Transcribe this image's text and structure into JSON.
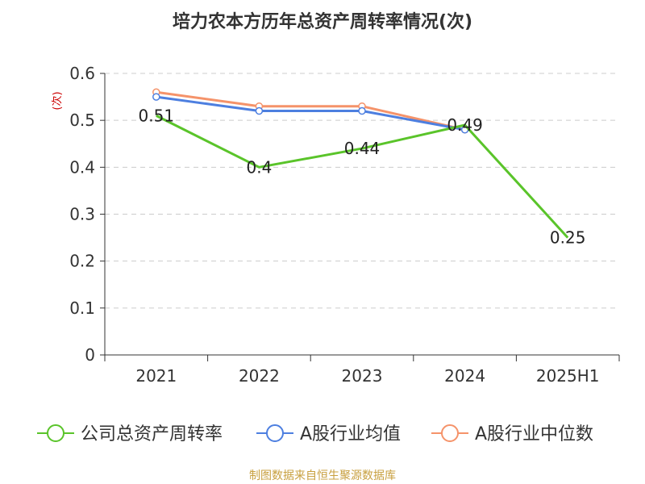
{
  "chart_data": {
    "type": "line",
    "title": "培力农本方历年总资产周转率情况(次)",
    "ylabel": "(次)",
    "xlabel": "",
    "categories": [
      "2021",
      "2022",
      "2023",
      "2024",
      "2025H1"
    ],
    "ylim": [
      0,
      0.6
    ],
    "yticks": [
      "0",
      "0.1",
      "0.2",
      "0.3",
      "0.4",
      "0.5",
      "0.6"
    ],
    "grid": true,
    "legend_position": "bottom",
    "series": [
      {
        "name": "公司总资产周转率",
        "color": "#5ac42a",
        "values": [
          0.51,
          0.4,
          0.44,
          0.49,
          0.25
        ],
        "labels": [
          "0.51",
          "0.4",
          "0.44",
          "0.49",
          "0.25"
        ],
        "show_markers": false
      },
      {
        "name": "A股行业均值",
        "color": "#4d7fe0",
        "values": [
          0.55,
          0.52,
          0.52,
          0.48,
          null
        ],
        "show_markers": true
      },
      {
        "name": "A股行业中位数",
        "color": "#f5936a",
        "values": [
          0.56,
          0.53,
          0.53,
          0.48,
          null
        ],
        "show_markers": true
      }
    ],
    "source": "制图数据来自恒生聚源数据库"
  }
}
